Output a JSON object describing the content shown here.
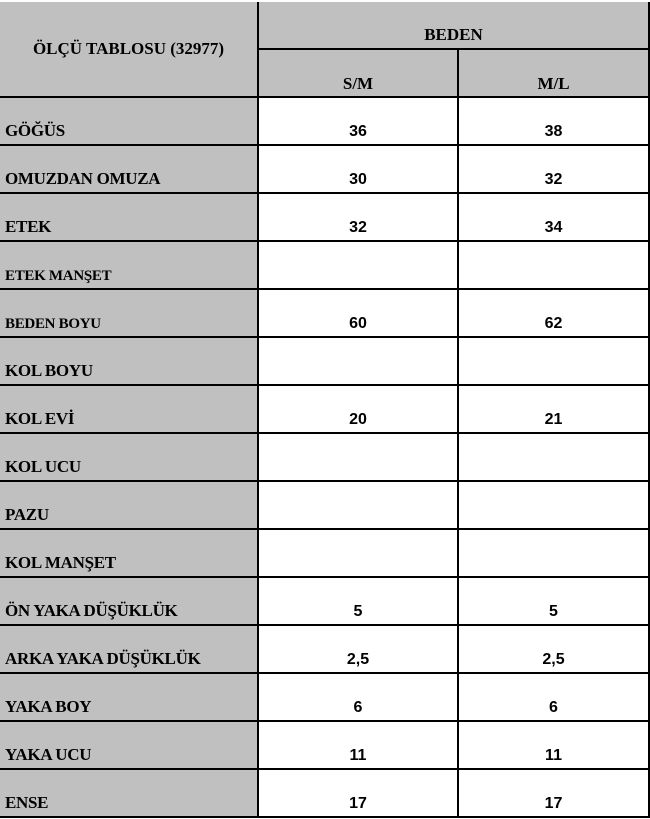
{
  "table": {
    "title": "ÖLÇÜ TABLOSU (32977)",
    "group_header": "BEDEN",
    "sizes": [
      "S/M",
      "M/L"
    ],
    "rows": [
      {
        "label": "GÖĞÜS",
        "values": [
          "36",
          "38"
        ]
      },
      {
        "label": "OMUZDAN OMUZA",
        "values": [
          "30",
          "32"
        ]
      },
      {
        "label": "ETEK",
        "values": [
          "32",
          "34"
        ]
      },
      {
        "label": "ETEK MANŞET",
        "values": [
          "",
          ""
        ]
      },
      {
        "label": "BEDEN BOYU",
        "values": [
          "60",
          "62"
        ]
      },
      {
        "label": "KOL BOYU",
        "values": [
          "",
          ""
        ]
      },
      {
        "label": "KOL EVİ",
        "values": [
          "20",
          "21"
        ]
      },
      {
        "label": "KOL UCU",
        "values": [
          "",
          ""
        ]
      },
      {
        "label": "PAZU",
        "values": [
          "",
          ""
        ]
      },
      {
        "label": "KOL MANŞET",
        "values": [
          "",
          ""
        ]
      },
      {
        "label": "ÖN YAKA DÜŞÜKLÜK",
        "values": [
          "5",
          "5"
        ]
      },
      {
        "label": "ARKA YAKA DÜŞÜKLÜK",
        "values": [
          "2,5",
          "2,5"
        ]
      },
      {
        "label": "YAKA BOY",
        "values": [
          "6",
          "6"
        ]
      },
      {
        "label": "YAKA UCU",
        "values": [
          "11",
          "11"
        ]
      },
      {
        "label": "ENSE",
        "values": [
          "17",
          "17"
        ]
      }
    ]
  }
}
